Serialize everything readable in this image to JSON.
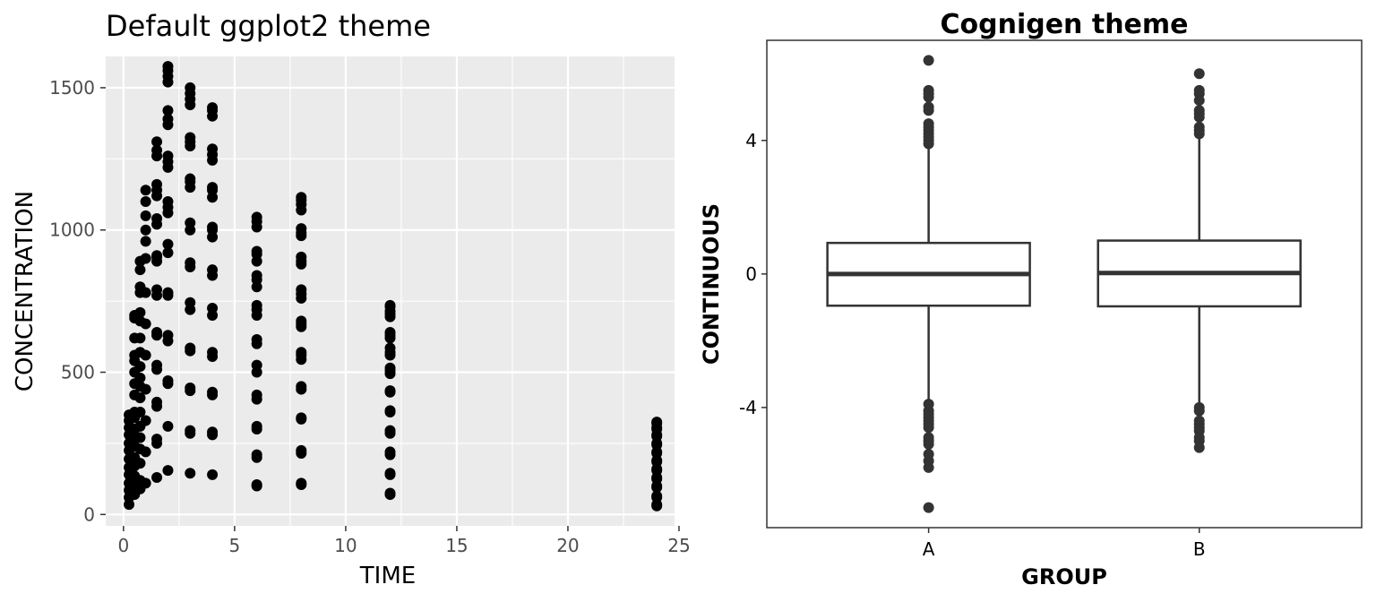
{
  "chart_data": [
    {
      "type": "scatter",
      "title": "Default ggplot2 theme",
      "xlabel": "TIME",
      "ylabel": "CONCENTRATION",
      "xlim": [
        -0.8,
        24.8
      ],
      "ylim": [
        -40,
        1610
      ],
      "xticks": [
        0,
        5,
        10,
        15,
        20,
        25
      ],
      "yticks": [
        0,
        500,
        1000,
        1500
      ],
      "grid": true,
      "colors": {
        "panel": "#ebebeb",
        "grid": "#ffffff",
        "point": "#000000",
        "axis_text": "#4d4d4d"
      },
      "columns": [
        {
          "x": 0.25,
          "y": [
            35,
            60,
            85,
            110,
            140,
            165,
            195,
            225,
            250,
            280,
            305,
            330,
            350
          ]
        },
        {
          "x": 0.5,
          "y": [
            70,
            100,
            135,
            170,
            200,
            240,
            270,
            300,
            340,
            360,
            420,
            460,
            500,
            540,
            560,
            620,
            690,
            700
          ]
        },
        {
          "x": 0.75,
          "y": [
            90,
            120,
            180,
            230,
            270,
            310,
            360,
            410,
            450,
            480,
            520,
            570,
            620,
            680,
            710,
            780,
            800,
            860,
            890
          ]
        },
        {
          "x": 1.0,
          "y": [
            110,
            220,
            330,
            440,
            560,
            670,
            780,
            900,
            960,
            1000,
            1050,
            1100,
            1140
          ]
        },
        {
          "x": 1.5,
          "y": [
            130,
            250,
            265,
            380,
            395,
            510,
            525,
            630,
            640,
            770,
            790,
            890,
            905,
            910,
            1020,
            1040,
            1120,
            1140,
            1160,
            1260,
            1280,
            1310
          ]
        },
        {
          "x": 2.0,
          "y": [
            155,
            310,
            460,
            470,
            610,
            630,
            770,
            780,
            920,
            950,
            1060,
            1080,
            1100,
            1220,
            1240,
            1260,
            1370,
            1390,
            1420,
            1520,
            1540,
            1560,
            1575
          ]
        },
        {
          "x": 3.0,
          "y": [
            145,
            285,
            295,
            435,
            445,
            575,
            585,
            720,
            745,
            870,
            885,
            1000,
            1025,
            1150,
            1170,
            1180,
            1295,
            1310,
            1325,
            1440,
            1460,
            1480,
            1500
          ]
        },
        {
          "x": 4.0,
          "y": [
            140,
            280,
            290,
            420,
            430,
            555,
            570,
            700,
            725,
            840,
            860,
            975,
            1000,
            1010,
            1115,
            1140,
            1150,
            1245,
            1265,
            1285,
            1400,
            1420,
            1430
          ]
        },
        {
          "x": 6.0,
          "y": [
            100,
            105,
            200,
            210,
            300,
            310,
            405,
            420,
            500,
            525,
            600,
            615,
            700,
            720,
            735,
            800,
            825,
            840,
            890,
            915,
            925,
            1010,
            1030,
            1045
          ]
        },
        {
          "x": 8.0,
          "y": [
            105,
            110,
            215,
            225,
            335,
            340,
            440,
            450,
            545,
            560,
            570,
            660,
            670,
            680,
            760,
            775,
            790,
            880,
            890,
            905,
            980,
            990,
            1005,
            1070,
            1090,
            1105,
            1115
          ]
        },
        {
          "x": 12.0,
          "y": [
            70,
            75,
            140,
            145,
            210,
            220,
            285,
            295,
            360,
            365,
            430,
            435,
            495,
            505,
            515,
            560,
            570,
            585,
            620,
            630,
            640,
            695,
            705,
            715,
            730,
            735
          ]
        },
        {
          "x": 24.0,
          "y": [
            30,
            35,
            60,
            65,
            95,
            100,
            125,
            130,
            155,
            160,
            185,
            190,
            215,
            220,
            245,
            250,
            275,
            280,
            300,
            305,
            320,
            325
          ]
        }
      ]
    },
    {
      "type": "box",
      "title": "Cognigen theme",
      "xlabel": "GROUP",
      "ylabel": "CONTINUOUS",
      "categories": [
        "A",
        "B"
      ],
      "ylim": [
        -7.6,
        7.0
      ],
      "yticks": [
        4,
        0,
        -4
      ],
      "ytick_labels": [
        "4",
        "0",
        "-4"
      ],
      "grid": false,
      "colors": {
        "box_line": "#333333",
        "box_fill": "#ffffff",
        "outlier": "#333333",
        "frame": "#333333"
      },
      "boxes": [
        {
          "name": "A",
          "q1": -0.95,
          "median": 0.0,
          "q3": 0.93,
          "whisker_low": -3.85,
          "whisker_high": 3.8,
          "outliers": [
            6.4,
            5.5,
            5.4,
            5.3,
            5.0,
            4.9,
            4.5,
            4.4,
            4.3,
            4.2,
            4.1,
            4.0,
            3.9,
            -3.9,
            -4.1,
            -4.2,
            -4.3,
            -4.4,
            -4.5,
            -4.6,
            -4.9,
            -5.0,
            -5.1,
            -5.4,
            -5.6,
            -5.8,
            -7.0
          ]
        },
        {
          "name": "B",
          "q1": -0.97,
          "median": 0.03,
          "q3": 1.0,
          "whisker_low": -4.0,
          "whisker_high": 4.1,
          "outliers": [
            6.0,
            5.5,
            5.4,
            5.2,
            4.9,
            4.8,
            4.7,
            4.4,
            4.3,
            4.2,
            -4.0,
            -4.1,
            -4.4,
            -4.5,
            -4.6,
            -4.7,
            -4.9,
            -5.0,
            -5.2
          ]
        }
      ]
    }
  ]
}
